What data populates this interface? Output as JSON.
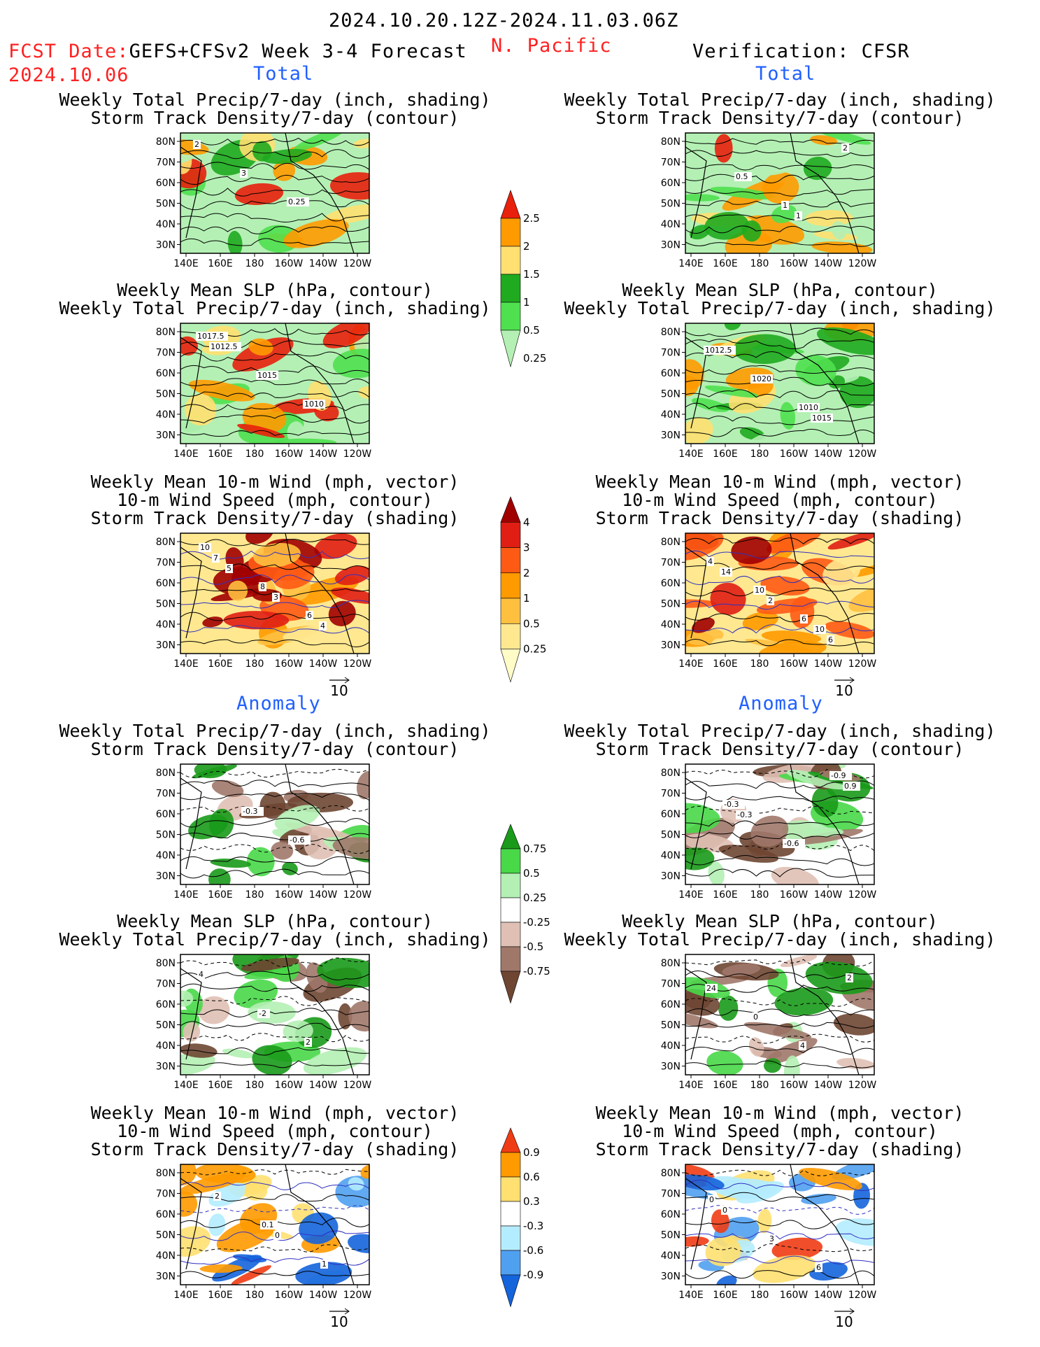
{
  "header": {
    "date_range": "2024.10.20.12Z-2024.11.03.06Z",
    "fcst_label": "FCST Date:",
    "model": "GEFS+CFSv2 Week 3-4 Forecast",
    "fcst_date": "2024.10.06",
    "region": "N. Pacific",
    "verification": "Verification: CFSR"
  },
  "sections": {
    "total": "Total",
    "anomaly": "Anomaly"
  },
  "panel_titles": {
    "precip_storm": [
      "Weekly Total Precip/7-day (inch, shading)",
      "Storm Track Density/7-day (contour)"
    ],
    "slp_precip": [
      "Weekly Mean SLP (hPa, contour)",
      "Weekly Total Precip/7-day (inch, shading)"
    ],
    "wind_storm": [
      "Weekly Mean 10-m Wind (mph, vector)",
      "10-m Wind Speed (mph, contour)",
      "Storm Track Density/7-day (shading)"
    ]
  },
  "axes": {
    "lat_labels": [
      "80N",
      "70N",
      "60N",
      "50N",
      "40N",
      "30N"
    ],
    "lon_labels": [
      "140E",
      "160E",
      "180",
      "160W",
      "140W",
      "120W"
    ]
  },
  "vector_ref": "10",
  "colorbars": {
    "precip_total": {
      "labels": [
        "2.5",
        "2",
        "1.5",
        "1",
        "0.5",
        "0.25"
      ],
      "colors": [
        "#e8200c",
        "#ff9a00",
        "#ffe070",
        "#1faa1f",
        "#4fe04f",
        "#b4f0b4"
      ]
    },
    "storm_total": {
      "labels": [
        "4",
        "3",
        "2",
        "1",
        "0.5",
        "0.25"
      ],
      "colors": [
        "#a00000",
        "#e01e14",
        "#ff5a14",
        "#ff9a00",
        "#ffc040",
        "#ffe890",
        "#fffcc8"
      ]
    },
    "precip_anom": {
      "labels": [
        "0.75",
        "0.5",
        "0.25",
        "-0.25",
        "-0.5",
        "-0.75"
      ],
      "colors": [
        "#1a9a1a",
        "#48d848",
        "#b4f0b4",
        "#ffffff",
        "#e0c0b4",
        "#a0786a",
        "#6e4632"
      ]
    },
    "storm_anom": {
      "labels": [
        "0.9",
        "0.6",
        "0.3",
        "-0.3",
        "-0.6",
        "-0.9"
      ],
      "colors": [
        "#f03c14",
        "#ff9a00",
        "#ffe070",
        "#ffffff",
        "#b4ecff",
        "#50a0f0",
        "#1464dc"
      ]
    }
  },
  "panels": [
    {
      "id": "p1",
      "col": 0,
      "row": 0,
      "fill": "precip",
      "labels": [
        "2",
        "3",
        "0.25"
      ]
    },
    {
      "id": "p2",
      "col": 0,
      "row": 1,
      "fill": "precip",
      "labels": [
        "1012.5",
        "1015",
        "1010",
        "1017.5"
      ]
    },
    {
      "id": "p3",
      "col": 0,
      "row": 2,
      "fill": "storm",
      "labels": [
        "5",
        "3",
        "4",
        "7",
        "8",
        "6",
        "10"
      ]
    },
    {
      "id": "p4",
      "col": 0,
      "row": 3,
      "fill": "panom",
      "labels": [
        "-0.3",
        "-0.6"
      ]
    },
    {
      "id": "p5",
      "col": 0,
      "row": 4,
      "fill": "panom",
      "labels": [
        "-2",
        "2",
        "4"
      ]
    },
    {
      "id": "p6",
      "col": 0,
      "row": 5,
      "fill": "sanom",
      "labels": [
        "0",
        "1",
        "2",
        "0.1"
      ]
    },
    {
      "id": "p7",
      "col": 1,
      "row": 0,
      "fill": "precip",
      "labels": [
        "1",
        "2",
        "0.5",
        "1"
      ]
    },
    {
      "id": "p8",
      "col": 1,
      "row": 1,
      "fill": "precip",
      "labels": [
        "1015",
        "1012.5",
        "1020",
        "1010"
      ]
    },
    {
      "id": "p9",
      "col": 1,
      "row": 2,
      "fill": "storm",
      "labels": [
        "6",
        "14",
        "2",
        "10",
        "4",
        "10",
        "6"
      ]
    },
    {
      "id": "p10",
      "col": 1,
      "row": 3,
      "fill": "panom",
      "labels": [
        "0.9",
        "-0.3",
        "-0.6",
        "-0.9",
        "-0.3"
      ]
    },
    {
      "id": "p11",
      "col": 1,
      "row": 4,
      "fill": "panom",
      "labels": [
        "24",
        "0",
        "4",
        "2"
      ]
    },
    {
      "id": "p12",
      "col": 1,
      "row": 5,
      "fill": "sanom",
      "labels": [
        "0",
        "3",
        "6",
        "0"
      ]
    }
  ]
}
